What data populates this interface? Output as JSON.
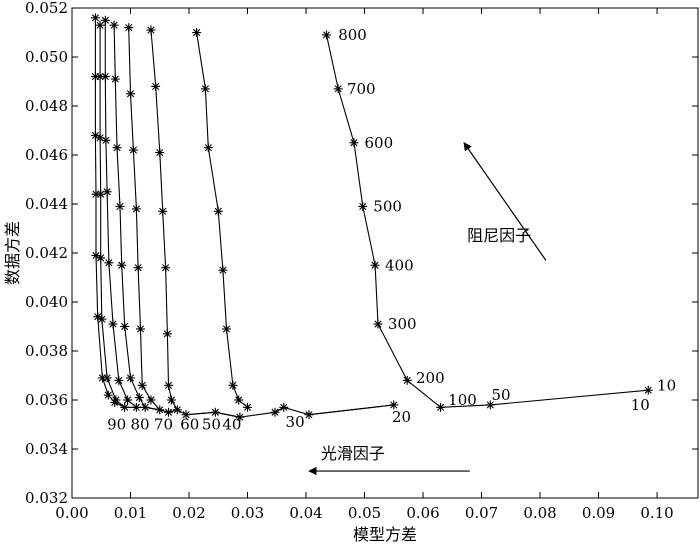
{
  "chart_data": {
    "type": "line",
    "title": "",
    "xlabel": "模型方差",
    "ylabel": "数据方差",
    "xlim": [
      0.0,
      0.107
    ],
    "ylim": [
      0.032,
      0.052
    ],
    "xticks": [
      0.0,
      0.01,
      0.02,
      0.03,
      0.04,
      0.05,
      0.06,
      0.07,
      0.08,
      0.09,
      0.1
    ],
    "xtick_labels": [
      "0.00",
      "0.01",
      "0.02",
      "0.03",
      "0.04",
      "0.05",
      "0.06",
      "0.07",
      "0.08",
      "0.09",
      "0.10"
    ],
    "yticks": [
      0.032,
      0.034,
      0.036,
      0.038,
      0.04,
      0.042,
      0.044,
      0.046,
      0.048,
      0.05,
      0.052
    ],
    "ytick_labels": [
      "0.032",
      "0.034",
      "0.036",
      "0.038",
      "0.040",
      "0.042",
      "0.044",
      "0.046",
      "0.048",
      "0.050",
      "0.052"
    ],
    "grid": false,
    "marker": "asterisk",
    "damping_curves": [
      {
        "label": "10",
        "points": [
          [
            0.004,
            0.0516
          ],
          [
            0.004,
            0.0492
          ],
          [
            0.004,
            0.0468
          ],
          [
            0.0041,
            0.0444
          ],
          [
            0.0041,
            0.0419
          ],
          [
            0.0044,
            0.0394
          ],
          [
            0.0052,
            0.0369
          ],
          [
            0.0062,
            0.0362
          ],
          [
            0.0073,
            0.0359
          ]
        ]
      },
      {
        "label": "",
        "points": [
          [
            0.0048,
            0.0513
          ],
          [
            0.0048,
            0.0492
          ],
          [
            0.0048,
            0.0467
          ],
          [
            0.0049,
            0.0444
          ],
          [
            0.0049,
            0.0418
          ],
          [
            0.0051,
            0.0393
          ],
          [
            0.006,
            0.0369
          ],
          [
            0.0075,
            0.036
          ],
          [
            0.009,
            0.0357
          ]
        ]
      },
      {
        "label": "",
        "points": [
          [
            0.0057,
            0.0515
          ],
          [
            0.0057,
            0.0492
          ],
          [
            0.0058,
            0.0466
          ],
          [
            0.006,
            0.0445
          ],
          [
            0.0063,
            0.0416
          ],
          [
            0.007,
            0.0391
          ],
          [
            0.008,
            0.0368
          ],
          [
            0.0095,
            0.036
          ],
          [
            0.011,
            0.0357
          ]
        ]
      },
      {
        "label": "",
        "points": [
          [
            0.0072,
            0.0513
          ],
          [
            0.0074,
            0.0491
          ],
          [
            0.0077,
            0.0463
          ],
          [
            0.0082,
            0.0439
          ],
          [
            0.0085,
            0.0415
          ],
          [
            0.009,
            0.039
          ],
          [
            0.01,
            0.0369
          ],
          [
            0.0115,
            0.0361
          ],
          [
            0.0125,
            0.0357
          ]
        ]
      },
      {
        "label": "",
        "points": [
          [
            0.0097,
            0.0512
          ],
          [
            0.01,
            0.0485
          ],
          [
            0.0105,
            0.0462
          ],
          [
            0.011,
            0.0438
          ],
          [
            0.0113,
            0.0414
          ],
          [
            0.0117,
            0.0389
          ],
          [
            0.012,
            0.0366
          ],
          [
            0.0135,
            0.036
          ],
          [
            0.015,
            0.0356
          ]
        ]
      },
      {
        "label": "",
        "points": [
          [
            0.0135,
            0.0511
          ],
          [
            0.0143,
            0.0488
          ],
          [
            0.015,
            0.0461
          ],
          [
            0.0155,
            0.0437
          ],
          [
            0.016,
            0.0414
          ],
          [
            0.0163,
            0.0387
          ],
          [
            0.0165,
            0.0366
          ],
          [
            0.017,
            0.036
          ],
          [
            0.018,
            0.0356
          ]
        ]
      },
      {
        "label": "",
        "points": [
          [
            0.0213,
            0.051
          ],
          [
            0.0228,
            0.0487
          ],
          [
            0.0233,
            0.0463
          ],
          [
            0.025,
            0.0437
          ],
          [
            0.0258,
            0.0413
          ],
          [
            0.0264,
            0.0389
          ],
          [
            0.0275,
            0.0366
          ],
          [
            0.0285,
            0.036
          ],
          [
            0.03,
            0.0357
          ]
        ]
      },
      {
        "label": "",
        "points": [
          [
            0.0435,
            0.0509
          ],
          [
            0.0455,
            0.0487
          ],
          [
            0.0482,
            0.0465
          ],
          [
            0.0497,
            0.0439
          ],
          [
            0.0518,
            0.0415
          ],
          [
            0.0523,
            0.0391
          ],
          [
            0.0573,
            0.0368
          ],
          [
            0.063,
            0.0357
          ]
        ]
      }
    ],
    "smoothing_curves": [
      {
        "label": "90",
        "points": [
          [
            0.0073,
            0.0359
          ],
          [
            0.009,
            0.0357
          ],
          [
            0.011,
            0.0357
          ]
        ]
      },
      {
        "label": "80",
        "points": [
          [
            0.011,
            0.0357
          ],
          [
            0.0125,
            0.0357
          ],
          [
            0.015,
            0.0356
          ]
        ]
      },
      {
        "label": "70",
        "points": [
          [
            0.0125,
            0.0357
          ],
          [
            0.015,
            0.0356
          ],
          [
            0.0165,
            0.0355
          ],
          [
            0.018,
            0.0356
          ]
        ]
      },
      {
        "label": "60",
        "points": [
          [
            0.0165,
            0.0355
          ],
          [
            0.018,
            0.0356
          ],
          [
            0.0195,
            0.0354
          ],
          [
            0.0245,
            0.0355
          ]
        ]
      },
      {
        "label": "50",
        "points": [
          [
            0.0195,
            0.0354
          ],
          [
            0.0245,
            0.0355
          ],
          [
            0.0287,
            0.0353
          ]
        ]
      },
      {
        "label": "40",
        "points": [
          [
            0.0245,
            0.0355
          ],
          [
            0.0287,
            0.0353
          ],
          [
            0.0347,
            0.0355
          ],
          [
            0.0362,
            0.0357
          ]
        ]
      },
      {
        "label": "30",
        "points": [
          [
            0.0347,
            0.0355
          ],
          [
            0.0362,
            0.0357
          ],
          [
            0.0405,
            0.0354
          ],
          [
            0.055,
            0.0358
          ]
        ]
      },
      {
        "label": "20",
        "points": [
          [
            0.0405,
            0.0354
          ],
          [
            0.055,
            0.0358
          ]
        ]
      },
      {
        "label": "10",
        "points": [
          [
            0.063,
            0.0357
          ],
          [
            0.0715,
            0.0358
          ],
          [
            0.0985,
            0.0364
          ]
        ]
      }
    ],
    "annotations": [
      {
        "text": "800",
        "x": 0.0455,
        "y": 0.0509
      },
      {
        "text": "700",
        "x": 0.047,
        "y": 0.0487
      },
      {
        "text": "600",
        "x": 0.05,
        "y": 0.0465
      },
      {
        "text": "500",
        "x": 0.0515,
        "y": 0.0439
      },
      {
        "text": "400",
        "x": 0.0535,
        "y": 0.0415
      },
      {
        "text": "300",
        "x": 0.054,
        "y": 0.0391
      },
      {
        "text": "200",
        "x": 0.0588,
        "y": 0.0369
      },
      {
        "text": "100",
        "x": 0.0643,
        "y": 0.036
      },
      {
        "text": "50",
        "x": 0.0717,
        "y": 0.0362
      },
      {
        "text": "10",
        "x": 0.1,
        "y": 0.0366
      },
      {
        "text": "10",
        "x": 0.0955,
        "y": 0.0358
      },
      {
        "text": "20",
        "x": 0.0547,
        "y": 0.0353
      },
      {
        "text": "30",
        "x": 0.0365,
        "y": 0.0351
      },
      {
        "text": "40",
        "x": 0.0257,
        "y": 0.035
      },
      {
        "text": "50",
        "x": 0.0222,
        "y": 0.035
      },
      {
        "text": "60",
        "x": 0.0185,
        "y": 0.035
      },
      {
        "text": "70",
        "x": 0.014,
        "y": 0.035
      },
      {
        "text": "80",
        "x": 0.01,
        "y": 0.035
      },
      {
        "text": "90",
        "x": 0.006,
        "y": 0.035
      }
    ],
    "arrows": [
      {
        "label": "阻尼因子",
        "from": [
          0.081,
          0.0417
        ],
        "to": [
          0.067,
          0.0465
        ],
        "label_at": [
          0.073,
          0.0425
        ]
      },
      {
        "label": "光滑因子",
        "from": [
          0.068,
          0.0331
        ],
        "to": [
          0.0405,
          0.0331
        ],
        "label_at": [
          0.048,
          0.0336
        ]
      }
    ]
  }
}
